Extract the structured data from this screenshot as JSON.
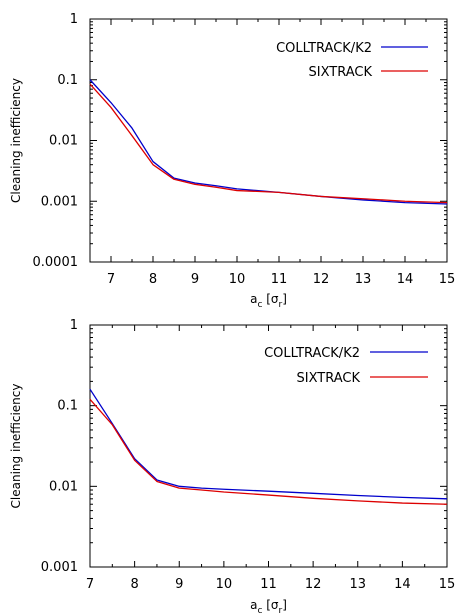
{
  "chart_data": [
    {
      "type": "line",
      "ylabel": "Cleaning inefficiency",
      "xlabel_main": "a",
      "xlabel_sub": "c",
      "xlabel_unit_open": " [σ",
      "xlabel_unit_sub": "r",
      "xlabel_unit_close": "]",
      "xlim": [
        6.5,
        15
      ],
      "ylim": [
        0.0001,
        1
      ],
      "y_scale": "log",
      "x_ticks": [
        "7",
        "8",
        "9",
        "10",
        "11",
        "12",
        "13",
        "14",
        "15"
      ],
      "y_ticks": [
        "0.0001",
        "0.001",
        "0.01",
        "0.1",
        "1"
      ],
      "legend_placement": "top-right",
      "series": [
        {
          "name": "COLLTRACK/K2",
          "color": "#0000cc",
          "x": [
            6.5,
            7.0,
            7.5,
            8.0,
            8.5,
            9.0,
            9.5,
            10.0,
            11.0,
            12.0,
            13.0,
            14.0,
            15.0
          ],
          "y": [
            0.1,
            0.042,
            0.016,
            0.0045,
            0.0024,
            0.002,
            0.0018,
            0.0016,
            0.0014,
            0.0012,
            0.00105,
            0.00095,
            0.0009
          ]
        },
        {
          "name": "SIXTRACK",
          "color": "#dd0000",
          "x": [
            6.5,
            7.0,
            7.5,
            8.0,
            8.5,
            9.0,
            9.5,
            10.0,
            11.0,
            12.0,
            13.0,
            14.0,
            15.0
          ],
          "y": [
            0.085,
            0.035,
            0.012,
            0.004,
            0.0023,
            0.0019,
            0.0017,
            0.0015,
            0.0014,
            0.0012,
            0.0011,
            0.001,
            0.00095
          ]
        }
      ]
    },
    {
      "type": "line",
      "ylabel": "Cleaning inefficiency",
      "xlabel_main": "a",
      "xlabel_sub": "c",
      "xlabel_unit_open": " [σ",
      "xlabel_unit_sub": "r",
      "xlabel_unit_close": "]",
      "xlim": [
        7,
        15
      ],
      "ylim": [
        0.001,
        1
      ],
      "y_scale": "log",
      "x_ticks": [
        "7",
        "8",
        "9",
        "10",
        "11",
        "12",
        "13",
        "14",
        "15"
      ],
      "y_ticks": [
        "0.001",
        "0.01",
        "0.1",
        "1"
      ],
      "legend_placement": "top-right",
      "series": [
        {
          "name": "COLLTRACK/K2",
          "color": "#0000cc",
          "x": [
            7.0,
            7.5,
            8.0,
            8.5,
            9.0,
            9.5,
            10.0,
            11.0,
            12.0,
            13.0,
            14.0,
            15.0
          ],
          "y": [
            0.16,
            0.06,
            0.022,
            0.012,
            0.01,
            0.0095,
            0.0092,
            0.0087,
            0.0082,
            0.0077,
            0.0073,
            0.007
          ]
        },
        {
          "name": "SIXTRACK",
          "color": "#dd0000",
          "x": [
            7.0,
            7.5,
            8.0,
            8.5,
            9.0,
            9.5,
            10.0,
            11.0,
            12.0,
            13.0,
            14.0,
            15.0
          ],
          "y": [
            0.12,
            0.058,
            0.021,
            0.0115,
            0.0095,
            0.009,
            0.0085,
            0.0078,
            0.0071,
            0.0066,
            0.0062,
            0.006
          ]
        }
      ]
    }
  ]
}
